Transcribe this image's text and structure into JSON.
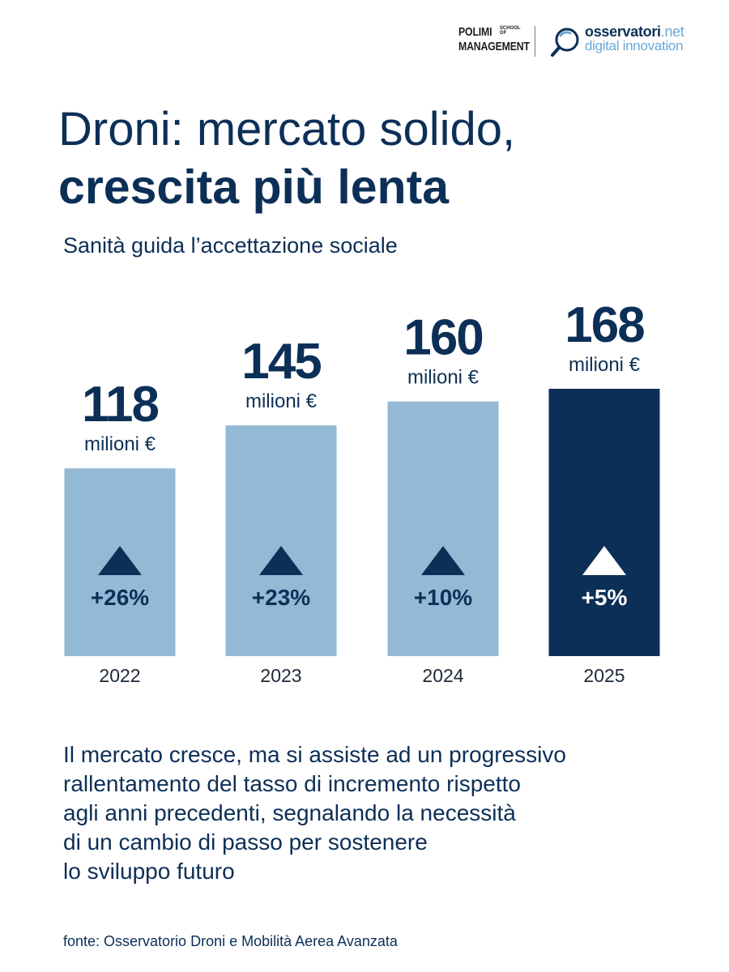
{
  "header": {
    "polimi": {
      "line1": "POLIMI",
      "school": "SCHOOL OF",
      "line2": "MANAGEMENT"
    },
    "osservatori": {
      "name": "osservatori",
      "tld": ".net",
      "tagline": "digital innovation"
    }
  },
  "title_line1": "Droni: mercato solido,",
  "title_line2": "crescita più lenta",
  "subtitle": "Sanità guida l’accettazione sociale",
  "chart_data": {
    "type": "bar",
    "categories": [
      "2022",
      "2023",
      "2024",
      "2025"
    ],
    "values": [
      118,
      145,
      160,
      168
    ],
    "value_unit": "milioni €",
    "growth_labels": [
      "+26%",
      "+23%",
      "+10%",
      "+5%"
    ],
    "growth_direction": "up",
    "highlight_index": 3,
    "colors": {
      "bar": "#93b9d5",
      "bar_highlight": "#0c2f57",
      "text": "#0c2f57",
      "triangle": "#0c2f57",
      "triangle_highlight": "#ffffff"
    },
    "ylim": [
      0,
      168
    ]
  },
  "body_lines": [
    "Il mercato cresce, ma si assiste ad un progressivo",
    "rallentamento del tasso di incremento rispetto",
    "agli anni precedenti, segnalando la necessità",
    "di un cambio di passo per sostenere",
    "lo sviluppo futuro"
  ],
  "source": "fonte: Osservatorio Droni e Mobilità Aerea Avanzata"
}
